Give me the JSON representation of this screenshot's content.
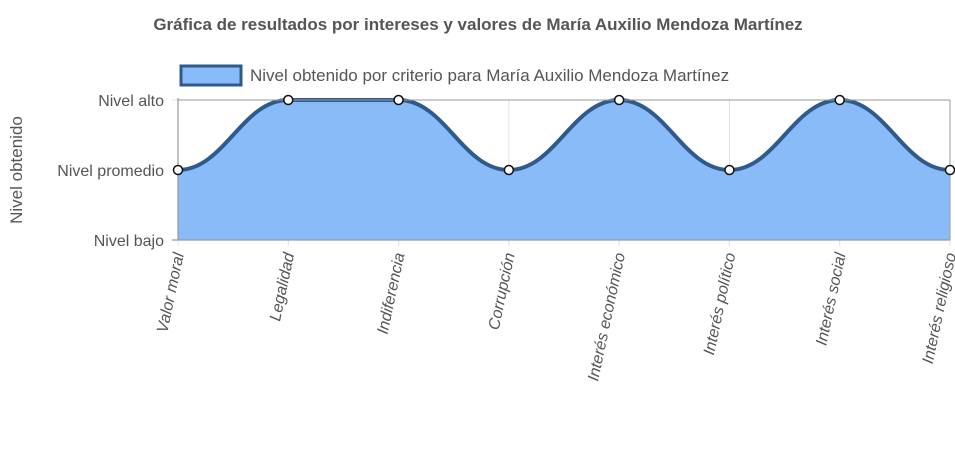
{
  "chart_data": {
    "type": "area",
    "title": "Gráfica de resultados por intereses y valores de María Auxilio Mendoza Martínez",
    "ylabel": "Nivel obtenido",
    "xlabel": "",
    "categories": [
      "Valor moral",
      "Legalidad",
      "Indiferencia",
      "Corrupción",
      "Interés económico",
      "Interés político",
      "Interés social",
      "Interés religioso"
    ],
    "y_levels": [
      "Nivel bajo",
      "Nivel promedio",
      "Nivel alto"
    ],
    "ylim": [
      0,
      2
    ],
    "series": [
      {
        "name": "Nivel obtenido por criterio para María Auxilio Mendoza Martínez",
        "values": [
          1,
          2,
          2,
          1,
          2,
          1,
          2,
          1
        ]
      }
    ],
    "legend_position": "top",
    "grid": true,
    "colors": {
      "fill": "#89bbf8",
      "line": "#2f5a8c",
      "grid": "#e0e0e0",
      "axis": "#999999",
      "point_fill": "#ffffff",
      "point_stroke": "#111111"
    }
  }
}
